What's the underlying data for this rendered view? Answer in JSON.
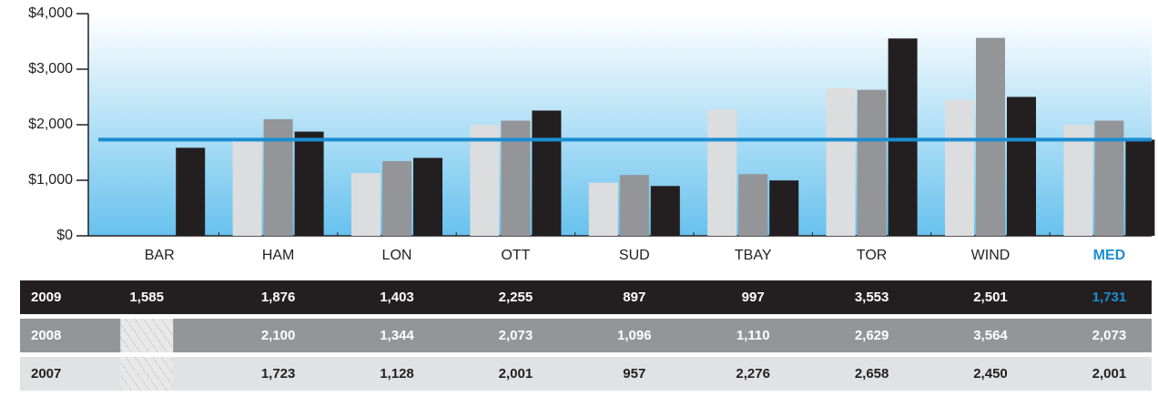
{
  "chart_data": {
    "type": "bar",
    "categories": [
      "BAR",
      "HAM",
      "LON",
      "OTT",
      "SUD",
      "TBAY",
      "TOR",
      "WIND",
      "MED"
    ],
    "series": [
      {
        "name": "2007",
        "color": "#dcdddf",
        "values": [
          null,
          1723,
          1128,
          2001,
          957,
          2276,
          2658,
          2450,
          2001
        ],
        "value_labels": [
          null,
          "1,723",
          "1,128",
          "2,001",
          "957",
          "2,276",
          "2,658",
          "2,450",
          "2,001"
        ]
      },
      {
        "name": "2008",
        "color": "#939598",
        "values": [
          null,
          2100,
          1344,
          2073,
          1096,
          1110,
          2629,
          3564,
          2073
        ],
        "value_labels": [
          null,
          "2,100",
          "1,344",
          "2,073",
          "1,096",
          "1,110",
          "2,629",
          "3,564",
          "2,073"
        ]
      },
      {
        "name": "2009",
        "color": "#231f20",
        "values": [
          1585,
          1876,
          1403,
          2255,
          897,
          997,
          3553,
          2501,
          1731
        ],
        "value_labels": [
          "1,585",
          "1,876",
          "1,403",
          "2,255",
          "897",
          "997",
          "3,553",
          "2,501",
          "1,731"
        ]
      }
    ],
    "ylim": [
      0,
      4000
    ],
    "yticks": [
      {
        "value": 0,
        "label": "$0"
      },
      {
        "value": 1000,
        "label": "$1,000"
      },
      {
        "value": 2000,
        "label": "$2,000"
      },
      {
        "value": 3000,
        "label": "$3,000"
      },
      {
        "value": 4000,
        "label": "$4,000"
      }
    ],
    "median_color": "#1b8dd0"
  }
}
